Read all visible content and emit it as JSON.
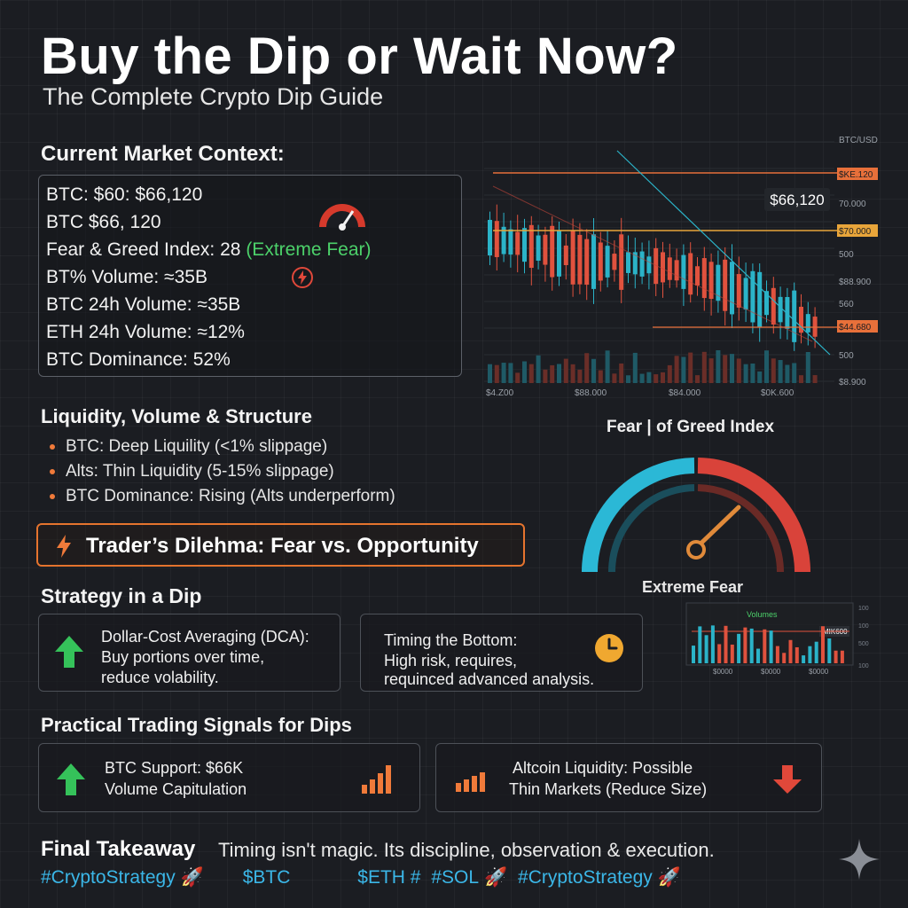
{
  "header": {
    "title": "Buy the Dip or Wait Now?",
    "subtitle": "The Complete Crypto Dip Guide"
  },
  "context": {
    "heading": "Current Market Context:",
    "lines": [
      "BTC: $60: $66,120",
      "BTC $66, 120",
      "Fear & Greed Index: 28",
      "BT% Volume: ≈35B",
      "BTC 24h Volume: ≈35B",
      "ETH 24h Volume: ≈12%",
      "BTC Dominance: 52%"
    ],
    "fear_tag": "(Extreme Fear)"
  },
  "chart": {
    "pair_label": "BTC/USD",
    "price_badge": "$66,120",
    "price_axis": [
      "$KE.120",
      "70.000",
      "$70.000",
      "500",
      "$88.900",
      "560",
      "$44.680",
      "500",
      "$8.900"
    ],
    "x_axis": [
      "$4.Z00",
      "$88.000",
      "$84.000",
      "$0K.600"
    ],
    "colors": {
      "up": "#2bb3c8",
      "down": "#e0523e",
      "resistance": "#e8703a",
      "support": "#e8a53a"
    }
  },
  "liquidity": {
    "heading": "Liquidity, Volume & Structure",
    "items": [
      "BTC: Deep Liquility (<1% slippage)",
      "Alts: Thin Liquidity (5-15% slippage)",
      "BTC Dominance: Rising (Alts underperform)"
    ]
  },
  "gauge": {
    "title": "Fear | of Greed Index",
    "label": "Extreme Fear",
    "value_fraction": 0.3
  },
  "mini_chart": {
    "label": "Volumes",
    "badge": "MIK600",
    "x_axis": [
      "$0000",
      "$0000",
      "$0000"
    ]
  },
  "dilemma": {
    "text": "Trader’s Dilehma: Fear vs. Opportunity"
  },
  "strategy": {
    "heading": "Strategy in a Dip",
    "dca": {
      "title": "Dollar-Cost Averaging (DCA):",
      "l1": "Buy portions over time,",
      "l2": "reduce volability."
    },
    "timing": {
      "title": "Timing the Bottom:",
      "l1": "High risk, requires,",
      "l2": "requinced advanced analysis."
    }
  },
  "signals": {
    "heading": "Practical Trading Signals for Dips",
    "support": {
      "l1": "BTC Support: $66K",
      "l2": "Volume  Capitulation"
    },
    "alt": {
      "l1": "Altcoin Liquidity: Possible",
      "l2": "Thin Markets (Reduce Size)"
    }
  },
  "takeaway": {
    "label": "Final Takeaway",
    "text": "Timing isn't magic. Its discipline, observation & execution."
  },
  "hashtags": [
    "#CryptoStrategy",
    "$BTC",
    "$ETH #",
    "#SOL",
    "#CryptoStrategy"
  ]
}
